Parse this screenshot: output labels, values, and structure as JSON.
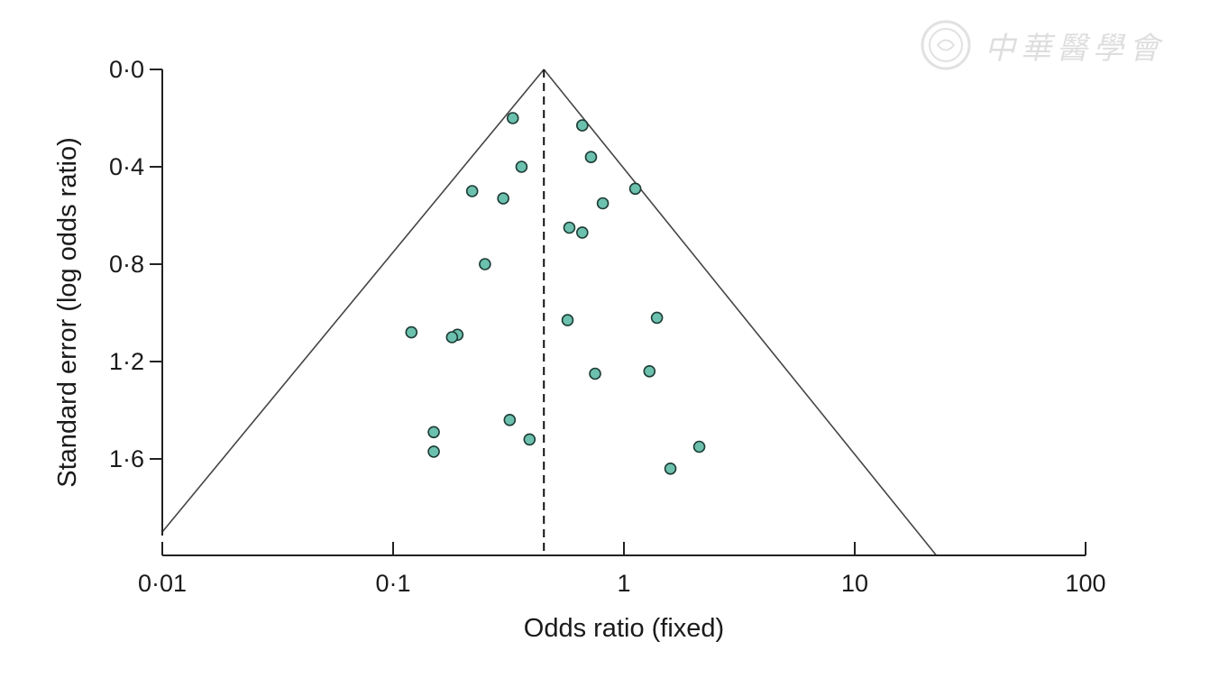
{
  "watermark": {
    "text": "中華醫學會",
    "seal": "seal-icon"
  },
  "chart_data": {
    "type": "scatter",
    "title": "",
    "xlabel": "Odds ratio (fixed)",
    "ylabel": "Standard error (log odds ratio)",
    "x_scale": "log",
    "xlim": [
      0.01,
      100
    ],
    "ylim": [
      0,
      1.9
    ],
    "y_inverted": true,
    "x_ticks": [
      0.01,
      0.1,
      1,
      10,
      100
    ],
    "x_tick_labels": [
      "0·01",
      "0·1",
      "1",
      "10",
      "100"
    ],
    "y_ticks": [
      0.0,
      0.4,
      0.8,
      1.2,
      1.6
    ],
    "y_tick_labels": [
      "0·0",
      "0·4",
      "0·8",
      "1·2",
      "1·6"
    ],
    "pooled_odds_ratio": 0.45,
    "funnel_apex": {
      "or": 0.45,
      "se": 0.0
    },
    "funnel_base": [
      {
        "or": 0.01,
        "se": 1.9
      },
      {
        "or": 21,
        "se": 1.9
      }
    ],
    "point_color": "#6cc0ae",
    "grid": false,
    "points": [
      {
        "or": 0.33,
        "se": 0.2
      },
      {
        "or": 0.66,
        "se": 0.23
      },
      {
        "or": 0.72,
        "se": 0.36
      },
      {
        "or": 0.36,
        "se": 0.4
      },
      {
        "or": 1.12,
        "se": 0.49
      },
      {
        "or": 0.22,
        "se": 0.5
      },
      {
        "or": 0.3,
        "se": 0.53
      },
      {
        "or": 0.81,
        "se": 0.55
      },
      {
        "or": 0.58,
        "se": 0.65
      },
      {
        "or": 0.66,
        "se": 0.67
      },
      {
        "or": 0.25,
        "se": 0.8
      },
      {
        "or": 1.39,
        "se": 1.02
      },
      {
        "or": 0.57,
        "se": 1.03
      },
      {
        "or": 0.12,
        "se": 1.08
      },
      {
        "or": 0.19,
        "se": 1.09
      },
      {
        "or": 0.18,
        "se": 1.1
      },
      {
        "or": 0.75,
        "se": 1.25
      },
      {
        "or": 1.29,
        "se": 1.24
      },
      {
        "or": 0.32,
        "se": 1.44
      },
      {
        "or": 0.15,
        "se": 1.49
      },
      {
        "or": 0.39,
        "se": 1.52
      },
      {
        "or": 2.12,
        "se": 1.55
      },
      {
        "or": 0.15,
        "se": 1.57
      },
      {
        "or": 1.59,
        "se": 1.64
      }
    ]
  }
}
